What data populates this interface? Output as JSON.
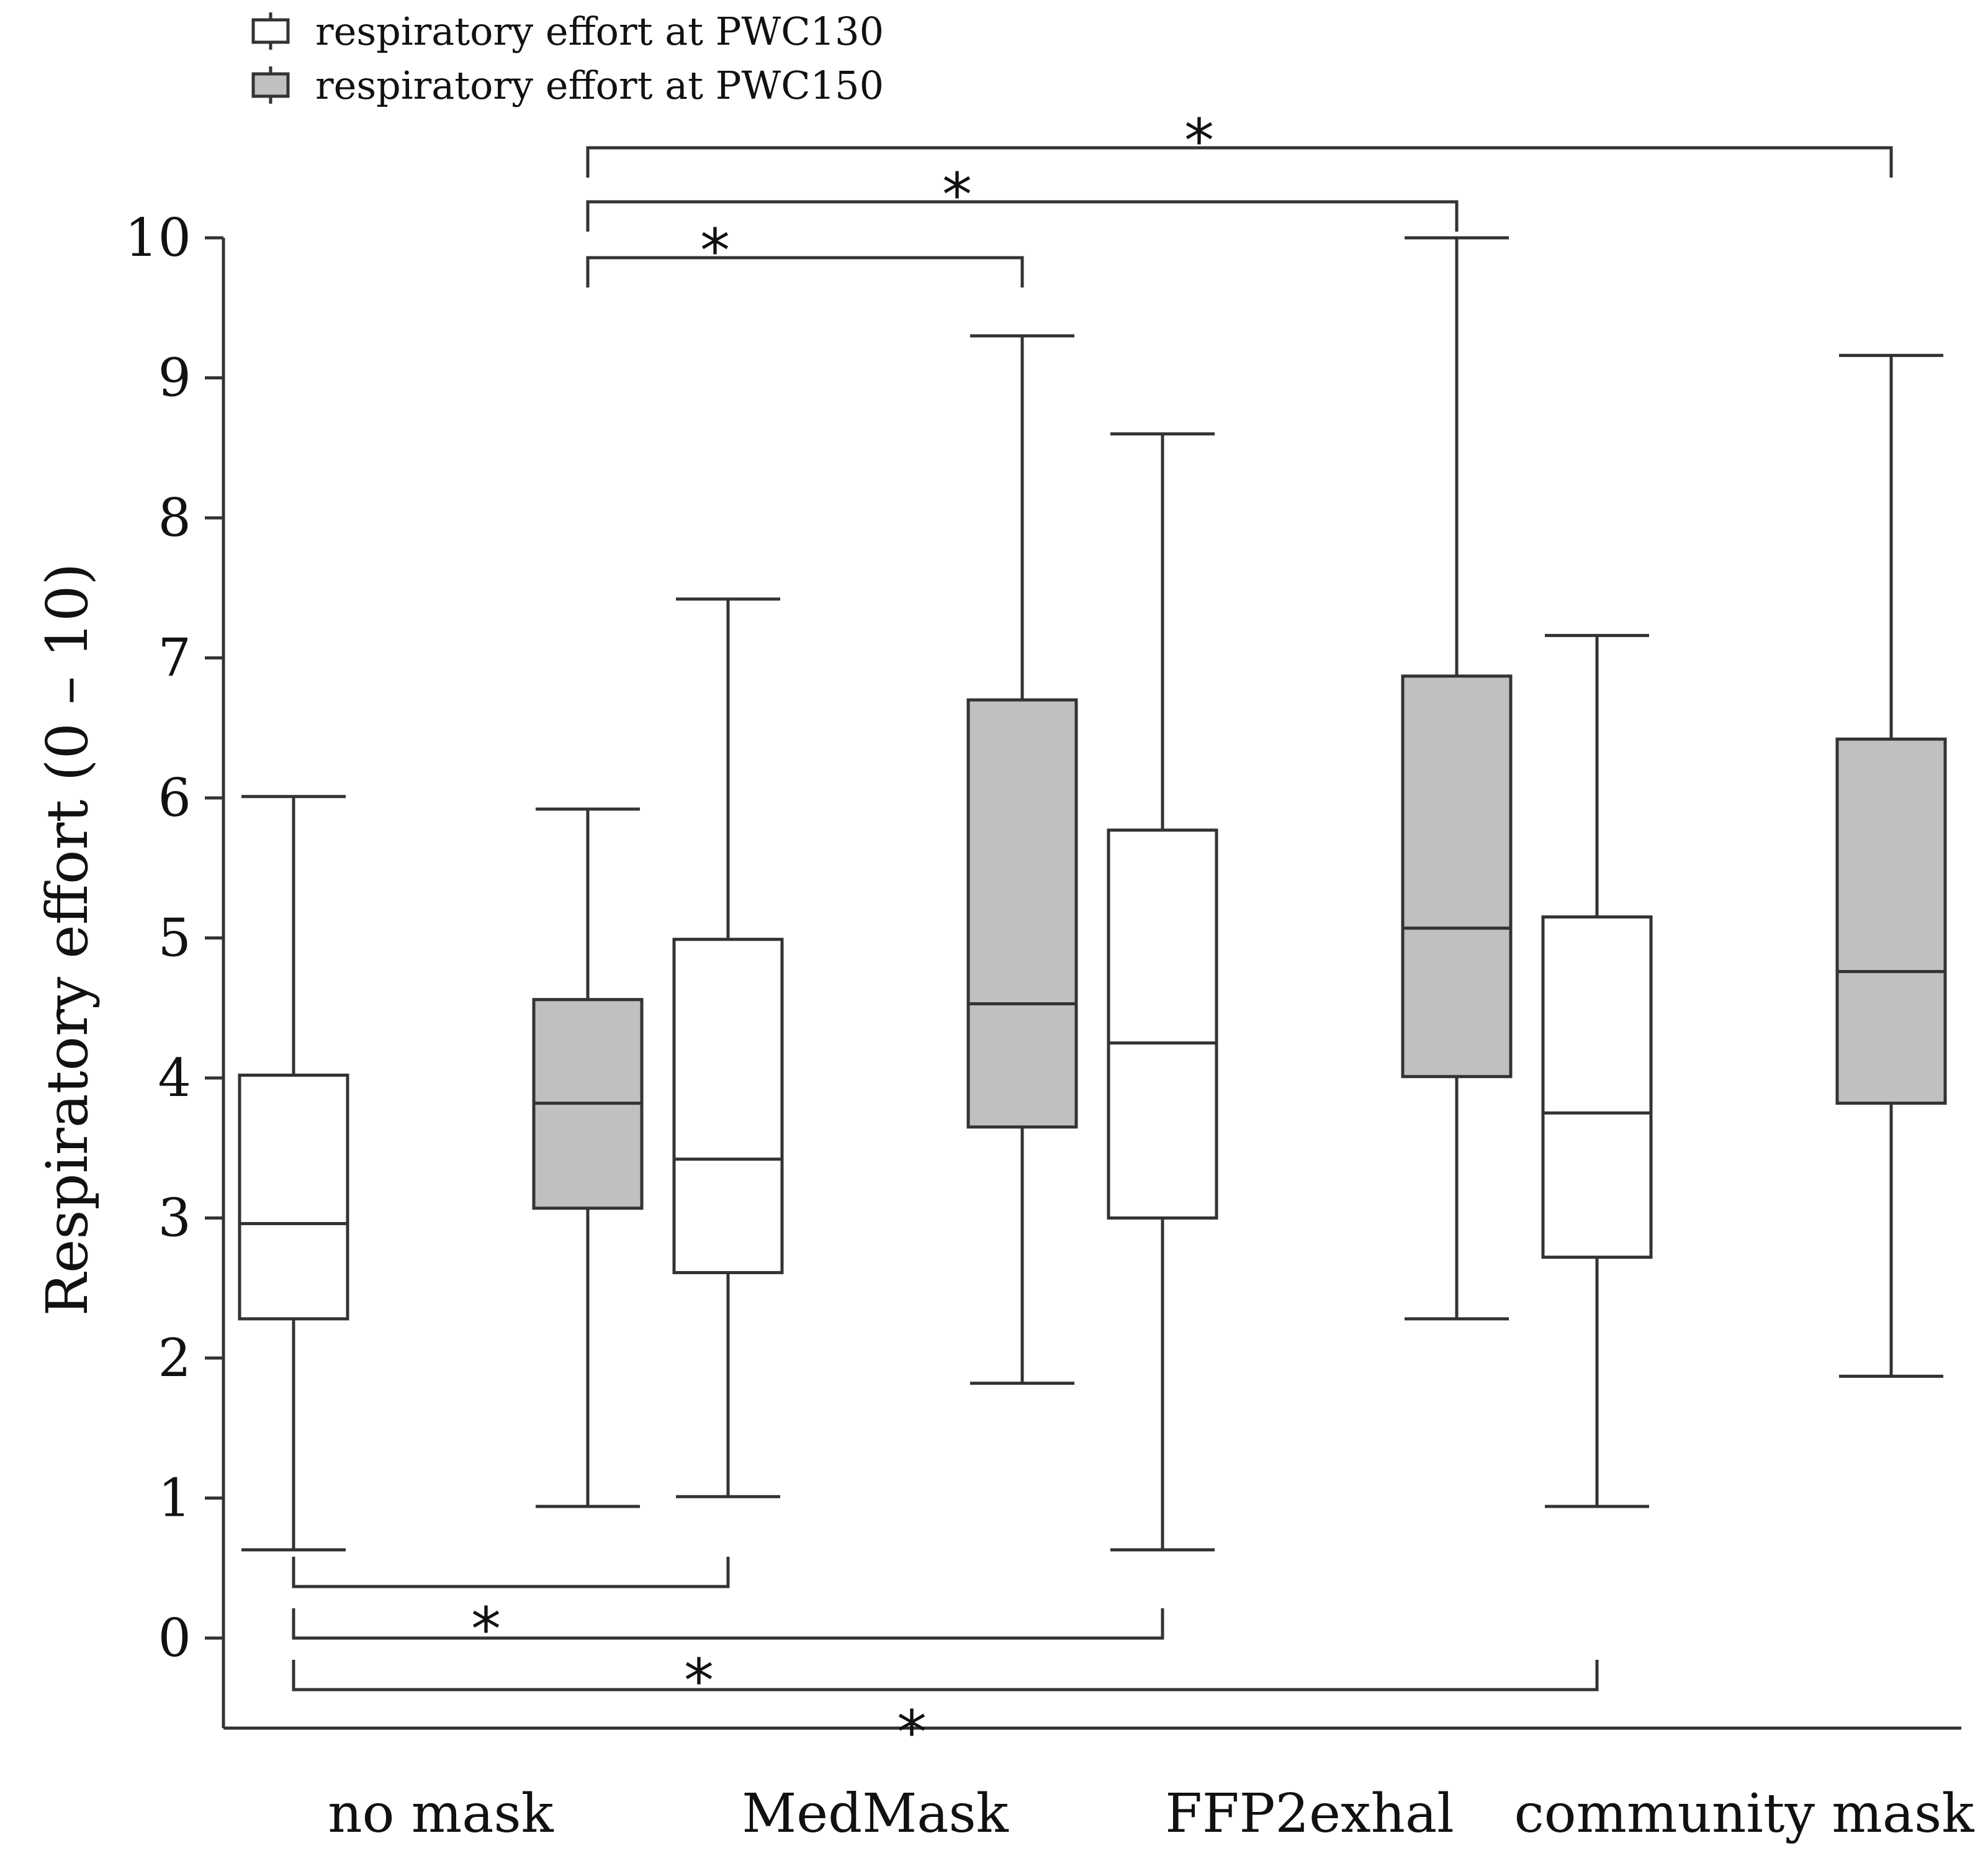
{
  "chart_data": {
    "type": "boxplot",
    "ylabel": "Respiratory effort (0 – 10)",
    "ylim": [
      -0.7,
      10
    ],
    "yticks": [
      0,
      1,
      2,
      3,
      4,
      5,
      6,
      7,
      8,
      9,
      10
    ],
    "categories": [
      "no mask",
      "MedMask",
      "FFP2exhal",
      "community mask"
    ],
    "series": [
      {
        "name": "respiratory effort at PWC130",
        "fill": "#ffffff",
        "boxes": [
          {
            "min": 0.63,
            "q1": 2.28,
            "median": 2.96,
            "q3": 4.02,
            "max": 6.01
          },
          {
            "min": 1.01,
            "q1": 2.61,
            "median": 3.42,
            "q3": 4.99,
            "max": 7.42
          },
          {
            "min": 0.63,
            "q1": 3.0,
            "median": 4.25,
            "q3": 5.77,
            "max": 8.6
          },
          {
            "min": 0.94,
            "q1": 2.72,
            "median": 3.75,
            "q3": 5.15,
            "max": 7.16
          }
        ]
      },
      {
        "name": "respiratory effort at PWC150",
        "fill": "#c0c0c0",
        "boxes": [
          {
            "min": 0.94,
            "q1": 3.07,
            "median": 3.82,
            "q3": 4.56,
            "max": 5.92
          },
          {
            "min": 1.82,
            "q1": 3.65,
            "median": 4.53,
            "q3": 6.7,
            "max": 9.3
          },
          {
            "min": 2.28,
            "q1": 4.01,
            "median": 5.07,
            "q3": 6.87,
            "max": 10.0
          },
          {
            "min": 1.87,
            "q1": 3.82,
            "median": 4.76,
            "q3": 6.42,
            "max": 9.16
          }
        ]
      }
    ],
    "significance": {
      "symbol": "*",
      "top": [
        {
          "from": "no mask",
          "to": "MedMask",
          "series": "respiratory effort at PWC150"
        },
        {
          "from": "no mask",
          "to": "FFP2exhal",
          "series": "respiratory effort at PWC150"
        },
        {
          "from": "no mask",
          "to": "community mask",
          "series": "respiratory effort at PWC150"
        }
      ],
      "bottom": [
        {
          "from": "no mask",
          "to": "MedMask",
          "series": "respiratory effort at PWC130"
        },
        {
          "from": "no mask",
          "to": "FFP2exhal",
          "series": "respiratory effort at PWC130"
        },
        {
          "from": "no mask",
          "to": "community mask",
          "series": "respiratory effort at PWC130"
        }
      ]
    }
  }
}
